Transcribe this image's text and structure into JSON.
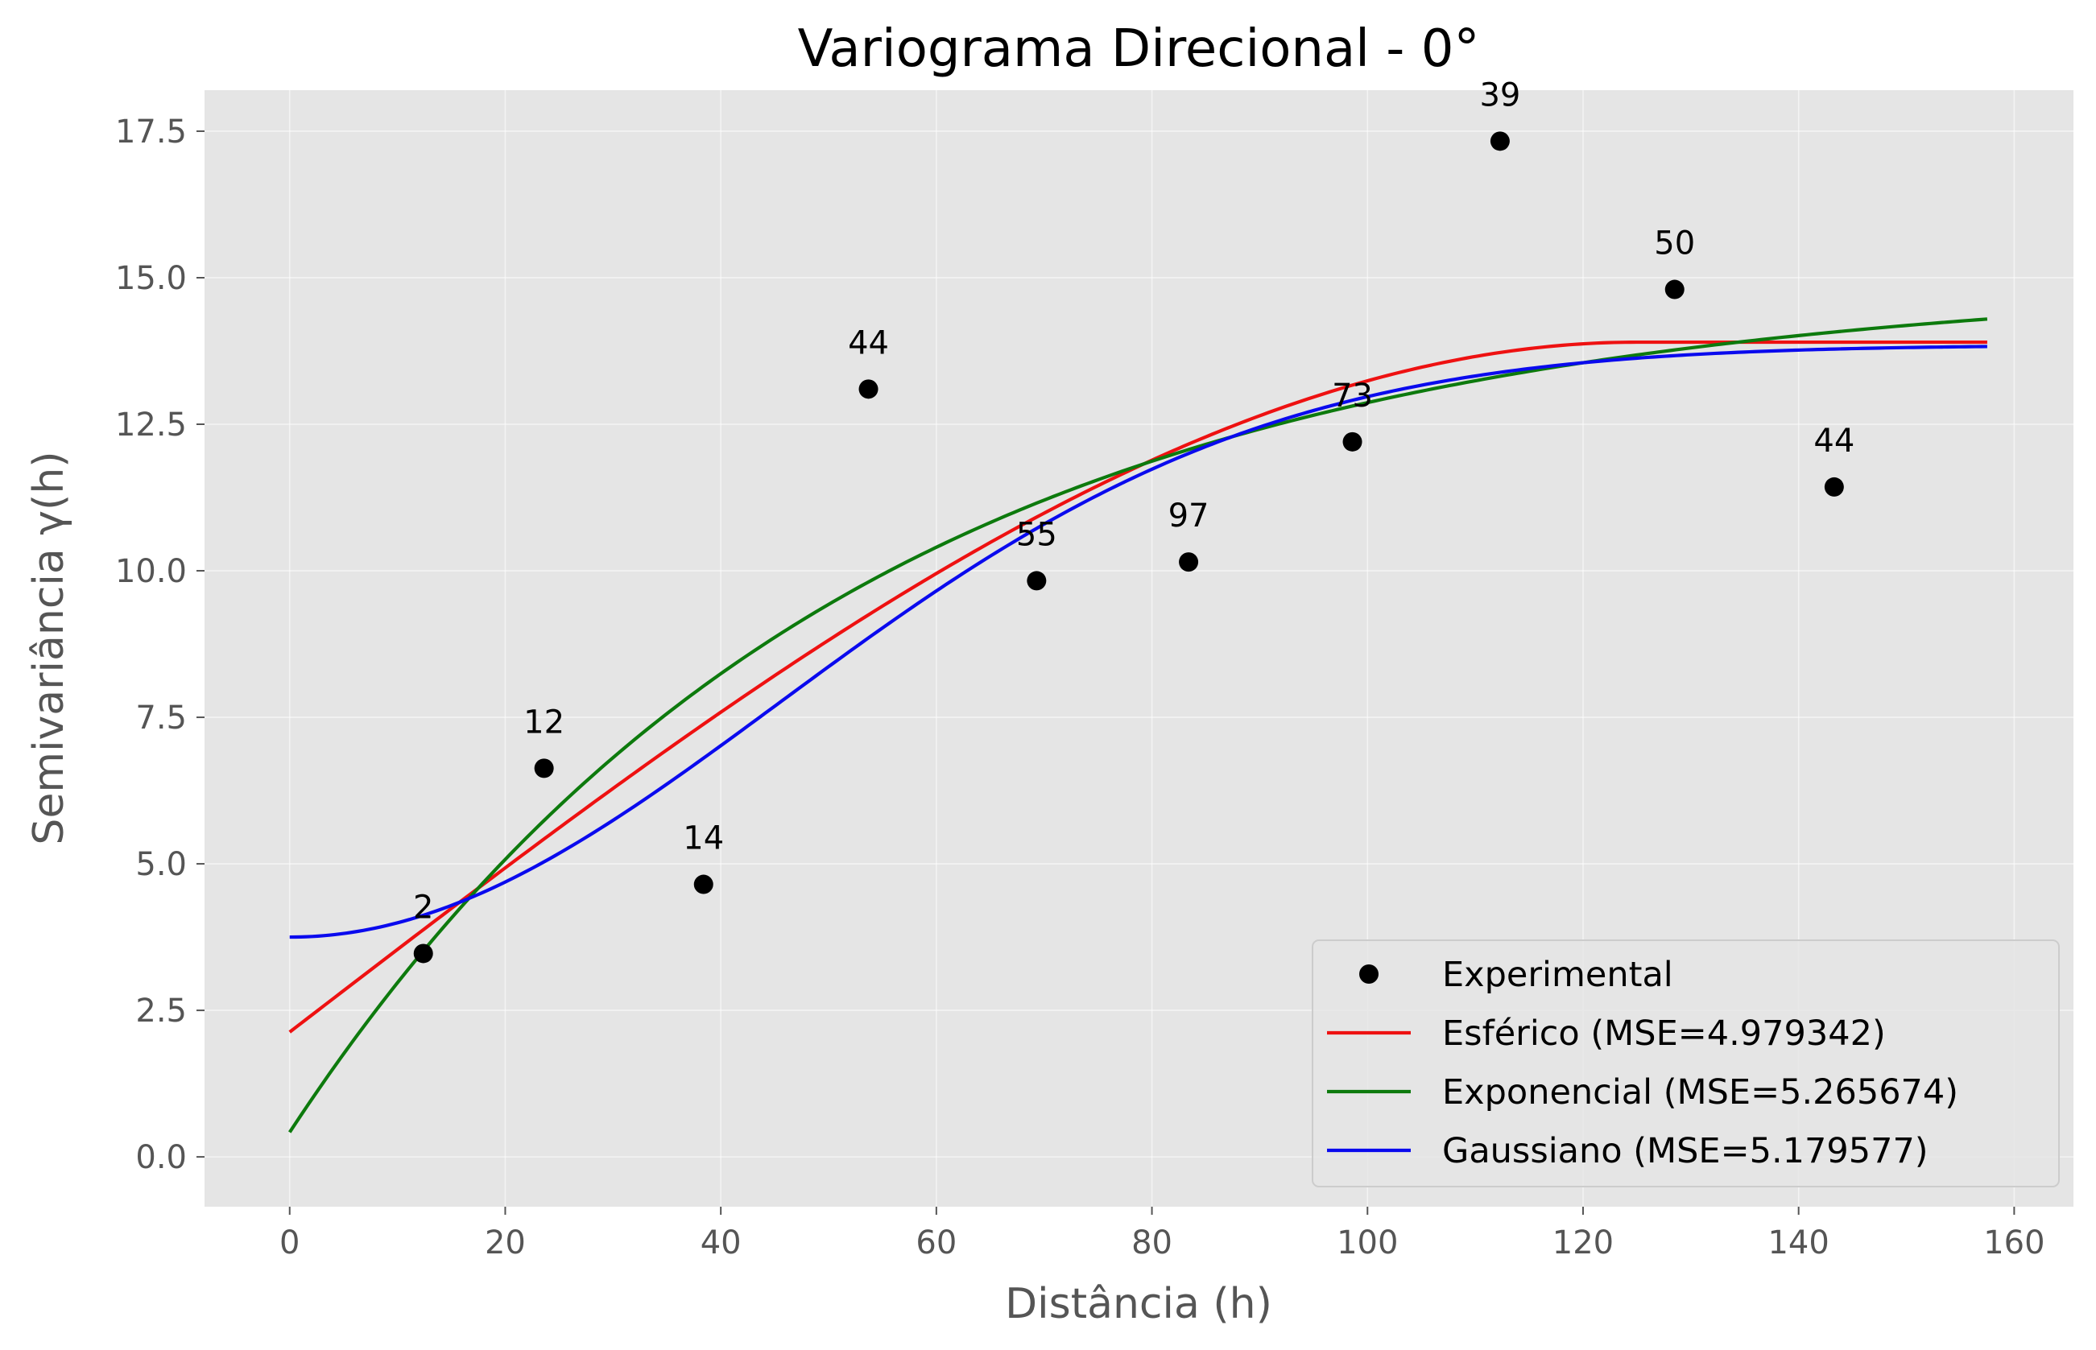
{
  "chart_data": {
    "type": "scatter",
    "title": "Variograma Direcional - 0°",
    "xlabel": "Distância (h)",
    "ylabel": "Semivariância γ(h)",
    "xlim": [
      -7.9,
      165.5
    ],
    "ylim": [
      -0.85,
      18.2
    ],
    "xticks": [
      0,
      20,
      40,
      60,
      80,
      100,
      120,
      140,
      160
    ],
    "xtick_labels": [
      "0",
      "20",
      "40",
      "60",
      "80",
      "100",
      "120",
      "140",
      "160"
    ],
    "yticks": [
      0,
      2.5,
      5,
      7.5,
      10,
      12.5,
      15,
      17.5
    ],
    "ytick_labels": [
      "0.0",
      "2.5",
      "5.0",
      "7.5",
      "10.0",
      "12.5",
      "15.0",
      "17.5"
    ],
    "grid": true,
    "background": "#e5e5e5",
    "legend_position": "lower right",
    "experimental": {
      "name": "Experimental",
      "color": "#000000",
      "points": [
        {
          "x": 12.4,
          "y": 3.47,
          "label": "2"
        },
        {
          "x": 23.6,
          "y": 6.63,
          "label": "12"
        },
        {
          "x": 38.4,
          "y": 4.65,
          "label": "14"
        },
        {
          "x": 53.7,
          "y": 13.1,
          "label": "44"
        },
        {
          "x": 69.3,
          "y": 9.83,
          "label": "55"
        },
        {
          "x": 83.4,
          "y": 10.15,
          "label": "97"
        },
        {
          "x": 98.6,
          "y": 12.2,
          "label": "73"
        },
        {
          "x": 112.3,
          "y": 17.33,
          "label": "39"
        },
        {
          "x": 128.5,
          "y": 14.8,
          "label": "50"
        },
        {
          "x": 143.3,
          "y": 11.43,
          "label": "44"
        }
      ]
    },
    "series": [
      {
        "name": "Esférico (MSE=4.979342)",
        "color": "#ee1111",
        "model": "spherical",
        "nugget": 2.13,
        "sill": 13.9,
        "range": 125.0
      },
      {
        "name": "Exponencial (MSE=5.265674)",
        "color": "#0d7a0d",
        "model": "exponential",
        "nugget": 0.42,
        "sill": 15.0,
        "a": 52.0
      },
      {
        "name": "Gaussiano (MSE=5.179577)",
        "color": "#0a0aee",
        "model": "gaussian",
        "nugget": 3.75,
        "sill": 13.85,
        "a": 64.0
      }
    ],
    "curve_x_range": [
      0,
      157.5
    ]
  }
}
